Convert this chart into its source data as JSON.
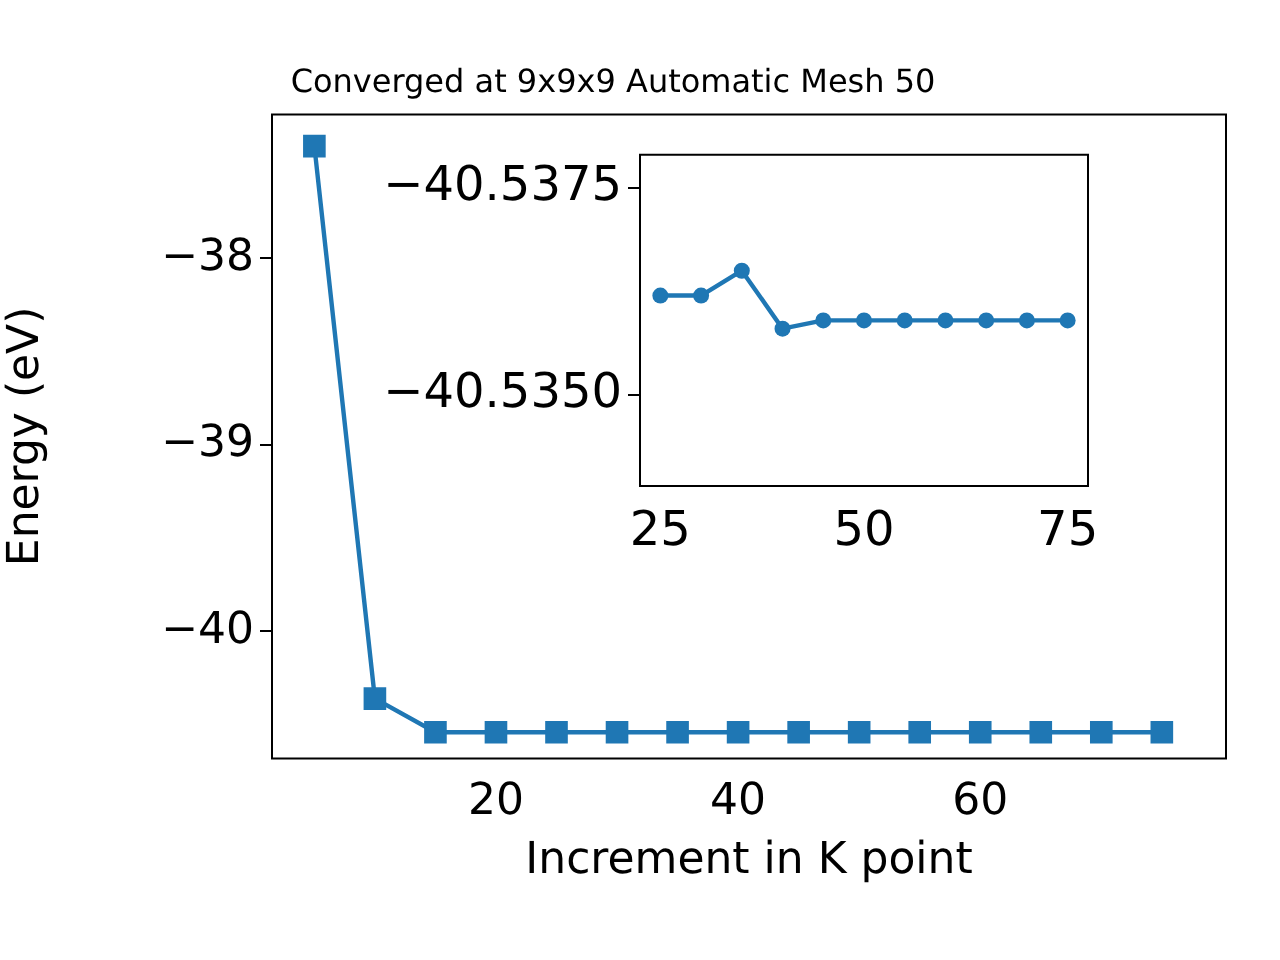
{
  "chart_data": [
    {
      "type": "line",
      "title": "Converged at 9x9x9 Automatic Mesh 50",
      "xlabel": "Increment in K point",
      "ylabel": "Energy (eV)",
      "x": [
        5,
        10,
        15,
        20,
        25,
        30,
        35,
        40,
        45,
        50,
        55,
        60,
        65,
        70,
        75
      ],
      "series": [
        {
          "color": "#1f77b4",
          "values": [
            -37.4,
            -40.36,
            -40.54,
            -40.54,
            -40.54,
            -40.54,
            -40.54,
            -40.54,
            -40.54,
            -40.54,
            -40.54,
            -40.54,
            -40.54,
            -40.54,
            -40.54
          ]
        }
      ],
      "xlim": [
        1.5,
        80.3
      ],
      "xticks": [
        20,
        40,
        60
      ],
      "ylim": [
        -40.68,
        -37.23
      ],
      "yticks": [
        -40,
        -39,
        -38
      ],
      "marker": "square",
      "grid": false,
      "legend": false
    },
    {
      "type": "line",
      "x": [
        25,
        30,
        35,
        40,
        45,
        50,
        55,
        60,
        65,
        70,
        75
      ],
      "series": [
        {
          "color": "#1f77b4",
          "values": [
            -40.5362,
            -40.5362,
            -40.5365,
            -40.5358,
            -40.5359,
            -40.5359,
            -40.5359,
            -40.5359,
            -40.5359,
            -40.5359,
            -40.5359
          ]
        }
      ],
      "xlim": [
        22.5,
        77.5
      ],
      "xticks": [
        25,
        50,
        75
      ],
      "ylim": [
        -40.5339,
        -40.5379
      ],
      "yticks": [
        {
          "value": -40.5375,
          "label": "−40.5375"
        },
        {
          "value": -40.535,
          "label": "−40.5350"
        }
      ],
      "marker": "circle",
      "grid": false,
      "legend": false
    }
  ]
}
